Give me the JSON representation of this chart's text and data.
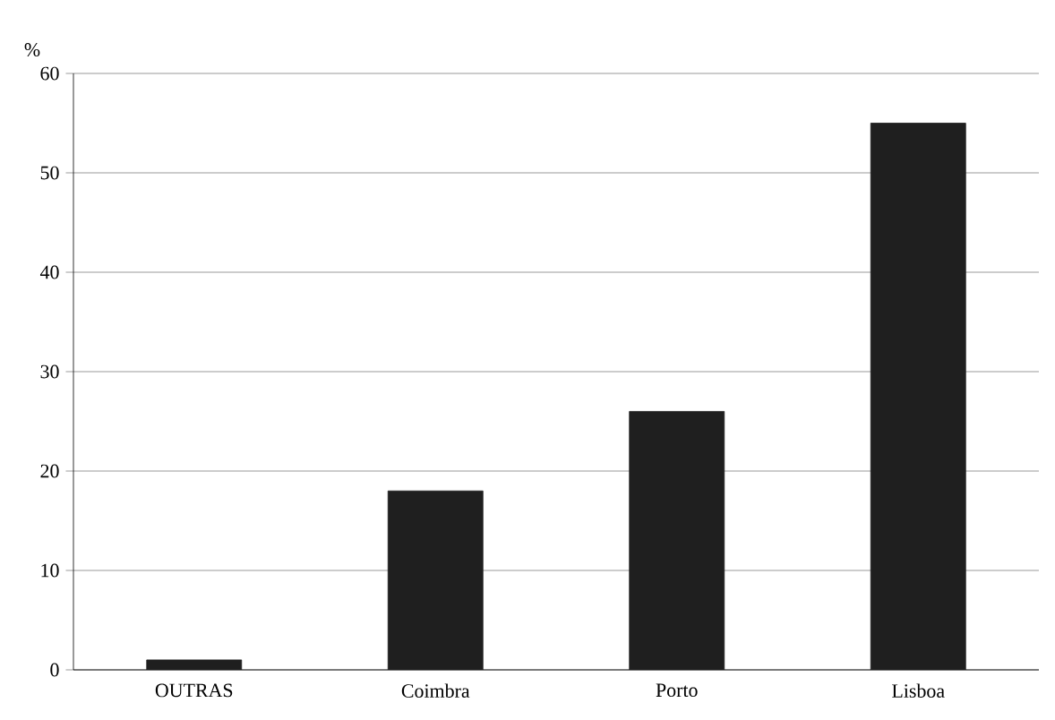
{
  "chart_data": {
    "type": "bar",
    "ylabel": "%",
    "categories": [
      "OUTRAS",
      "Coimbra",
      "Porto",
      "Lisboa"
    ],
    "values": [
      1,
      18,
      26,
      55
    ],
    "color": "#1f1f1f",
    "ylim": [
      0,
      60
    ],
    "yticks": [
      0,
      10,
      20,
      30,
      40,
      50,
      60
    ],
    "grid": "y"
  }
}
